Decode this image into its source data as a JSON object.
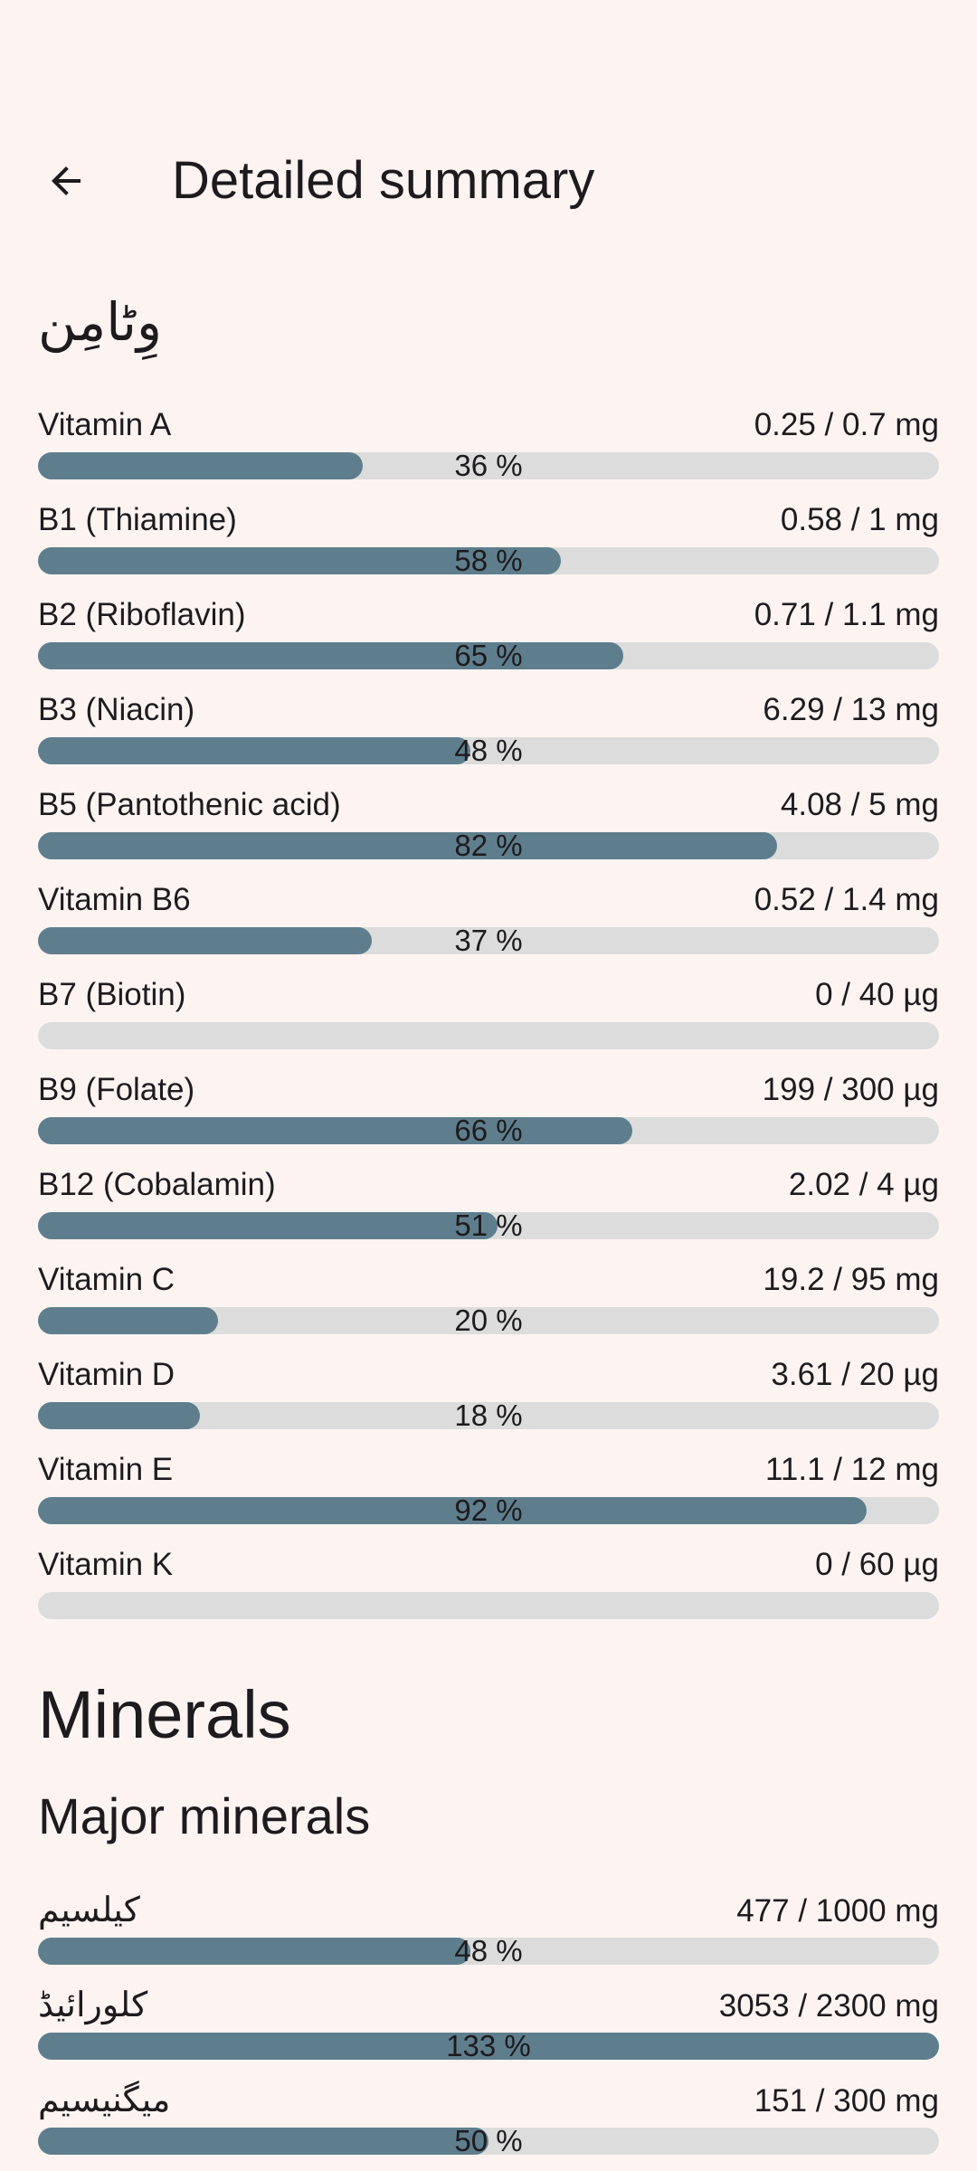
{
  "appbar": {
    "title": "Detailed summary",
    "back_icon": "arrow-left-icon"
  },
  "colors": {
    "background": "#FDF4F2",
    "text": "#1E1B1E",
    "bar_fill": "#5F7E8D",
    "bar_track": "#DCDCDC"
  },
  "vitamins": {
    "heading": "وِٹامِن",
    "rows": [
      {
        "label": "Vitamin A",
        "value": "0.25 / 0.7 mg",
        "percent_label": "36 %",
        "percent": 36
      },
      {
        "label": "B1 (Thiamine)",
        "value": "0.58 / 1 mg",
        "percent_label": "58 %",
        "percent": 58
      },
      {
        "label": "B2 (Riboflavin)",
        "value": "0.71 / 1.1 mg",
        "percent_label": "65 %",
        "percent": 65
      },
      {
        "label": "B3 (Niacin)",
        "value": "6.29 / 13 mg",
        "percent_label": "48 %",
        "percent": 48
      },
      {
        "label": "B5 (Pantothenic acid)",
        "value": "4.08 / 5 mg",
        "percent_label": "82 %",
        "percent": 82
      },
      {
        "label": "Vitamin B6",
        "value": "0.52 / 1.4 mg",
        "percent_label": "37 %",
        "percent": 37
      },
      {
        "label": "B7 (Biotin)",
        "value": "0 / 40 µg",
        "percent_label": "",
        "percent": 0
      },
      {
        "label": "B9 (Folate)",
        "value": "199 / 300 µg",
        "percent_label": "66 %",
        "percent": 66
      },
      {
        "label": "B12 (Cobalamin)",
        "value": "2.02 / 4 µg",
        "percent_label": "51 %",
        "percent": 51
      },
      {
        "label": "Vitamin C",
        "value": "19.2 / 95 mg",
        "percent_label": "20 %",
        "percent": 20
      },
      {
        "label": "Vitamin D",
        "value": "3.61 / 20 µg",
        "percent_label": "18 %",
        "percent": 18
      },
      {
        "label": "Vitamin E",
        "value": "11.1 / 12 mg",
        "percent_label": "92 %",
        "percent": 92
      },
      {
        "label": "Vitamin K",
        "value": "0 / 60 µg",
        "percent_label": "",
        "percent": 0
      }
    ]
  },
  "minerals": {
    "heading": "Minerals",
    "subheading": "Major minerals",
    "rows": [
      {
        "label": "کیلسیم",
        "value": "477 / 1000 mg",
        "percent_label": "48 %",
        "percent": 48
      },
      {
        "label": "کلورائیڈ",
        "value": "3053 / 2300 mg",
        "percent_label": "133 %",
        "percent": 133
      },
      {
        "label": "میگنیسیم",
        "value": "151 / 300 mg",
        "percent_label": "50 %",
        "percent": 50
      }
    ]
  }
}
